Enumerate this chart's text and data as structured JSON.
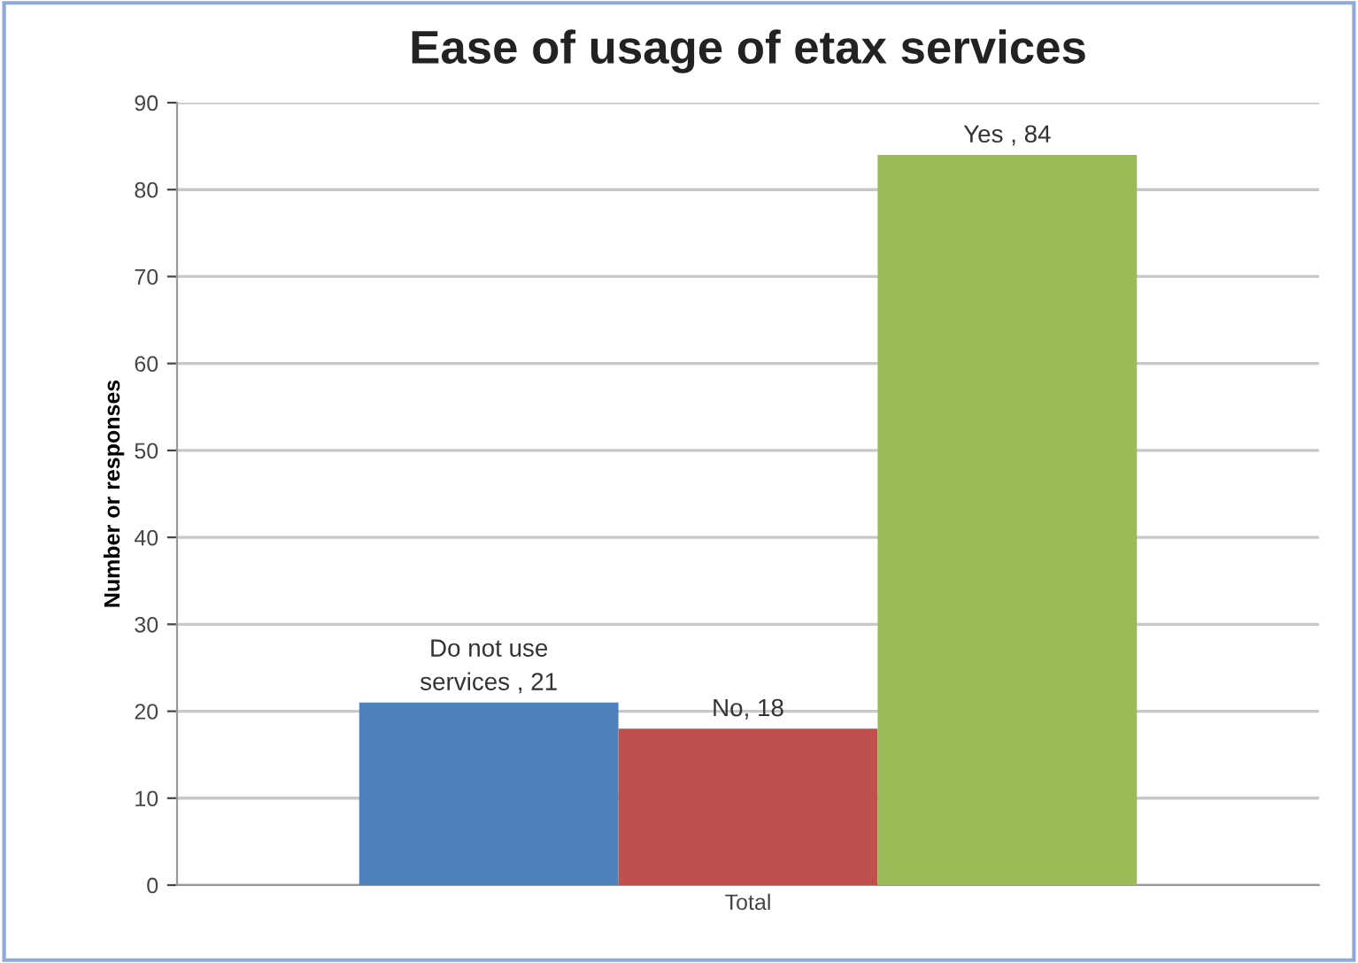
{
  "chart_data": {
    "type": "bar",
    "title": "Ease of usage of etax services",
    "ylabel": "Number or responses",
    "categories": [
      "Total"
    ],
    "series": [
      {
        "color": "#4f81bd",
        "values": [
          21
        ],
        "value_labels": [
          "Do not use\nservices , 21"
        ]
      },
      {
        "color": "#c0504d",
        "values": [
          18
        ],
        "value_labels": [
          "No, 18"
        ]
      },
      {
        "color": "#9bbb59",
        "values": [
          84
        ],
        "value_labels": [
          "Yes , 84"
        ]
      }
    ],
    "ylim": [
      0,
      90
    ],
    "yticks": [
      0,
      10,
      20,
      30,
      40,
      50,
      60,
      70,
      80,
      90
    ],
    "grid": "y",
    "legend": false
  }
}
